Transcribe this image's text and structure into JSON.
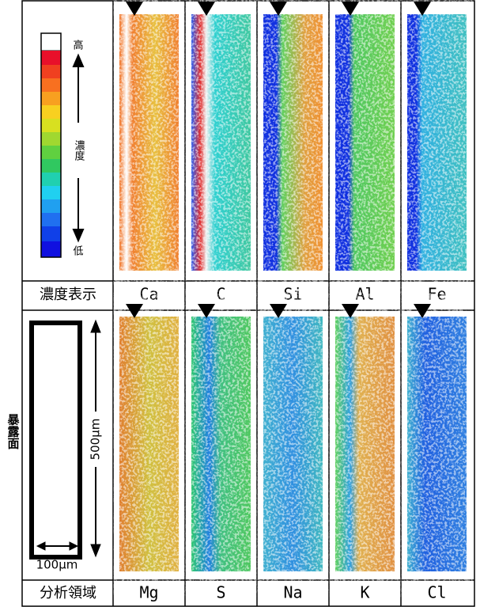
{
  "legend": {
    "high": "高",
    "concentration": "濃度",
    "low": "低"
  },
  "region": {
    "exposed_face": "暴露面",
    "length": "500μm",
    "width": "100μm"
  },
  "rows": [
    {
      "label": "濃度表示",
      "elements": [
        "Ca",
        "C",
        "Si",
        "Al",
        "Fe"
      ]
    },
    {
      "label": "分析領域",
      "elements": [
        "Mg",
        "S",
        "Na",
        "K",
        "Cl"
      ]
    }
  ]
}
